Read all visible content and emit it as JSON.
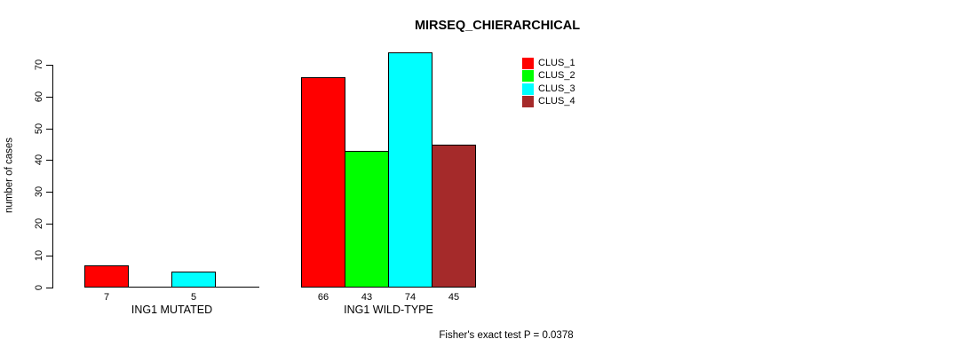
{
  "title": "MIRSEQ_CHIERARCHICAL",
  "y_axis_label": "number of cases",
  "footer_note": "Fisher's exact test P = 0.0378",
  "legend": {
    "position": "top-right",
    "items": [
      {
        "label": "CLUS_1",
        "color": "#ff0000"
      },
      {
        "label": "CLUS_2",
        "color": "#00ff00"
      },
      {
        "label": "CLUS_3",
        "color": "#00ffff"
      },
      {
        "label": "CLUS_4",
        "color": "#a52a2a"
      }
    ]
  },
  "chart_data": {
    "type": "bar",
    "title": "MIRSEQ_CHIERARCHICAL",
    "ylabel": "number of cases",
    "xlabel": "",
    "ylim": [
      0,
      70
    ],
    "yticks": [
      0,
      10,
      20,
      30,
      40,
      50,
      60,
      70
    ],
    "grid": false,
    "legend_position": "top-right",
    "series_names": [
      "CLUS_1",
      "CLUS_2",
      "CLUS_3",
      "CLUS_4"
    ],
    "series_colors": [
      "#ff0000",
      "#00ff00",
      "#00ffff",
      "#a52a2a"
    ],
    "groups": [
      {
        "label": "ING1 MUTATED",
        "values": [
          7,
          0,
          5,
          0
        ],
        "value_labels": [
          "7",
          "",
          "5",
          ""
        ]
      },
      {
        "label": "ING1 WILD-TYPE",
        "values": [
          66,
          43,
          74,
          45
        ],
        "value_labels": [
          "66",
          "43",
          "74",
          "45"
        ]
      }
    ],
    "annotation": "Fisher's exact test P = 0.0378"
  }
}
